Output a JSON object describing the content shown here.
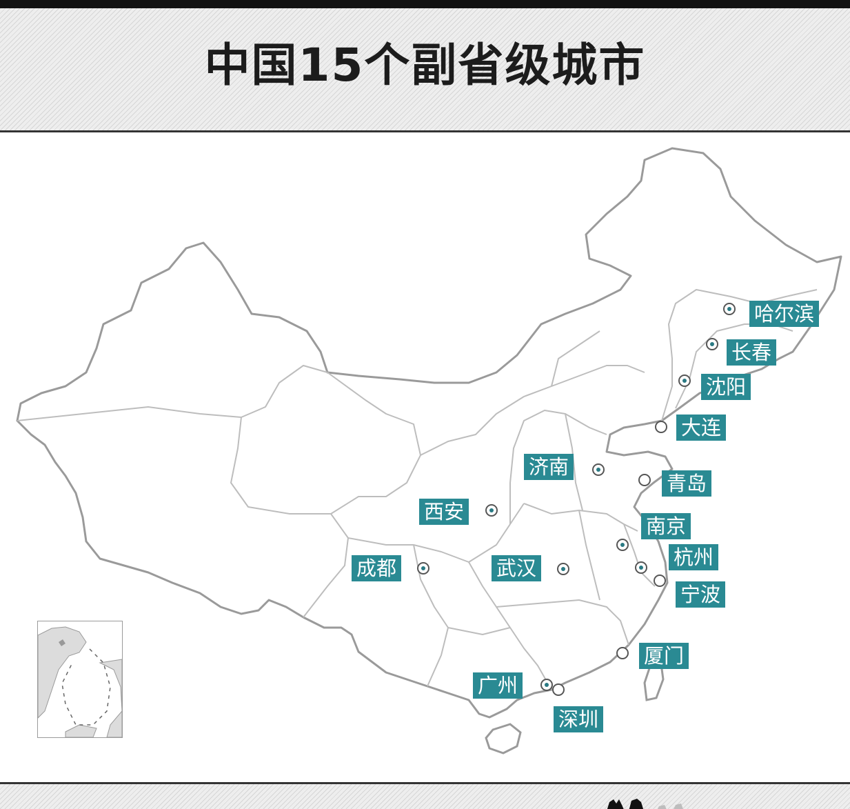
{
  "title": "中国15个副省级城市",
  "colors": {
    "label_bg": "#2a8a93",
    "label_text": "#ffffff",
    "marker_dot": "#2a7a84",
    "map_outline": "#9a9a9a",
    "header_stripes": "#d6d6d6",
    "top_bar": "#121212"
  },
  "cities": [
    {
      "name": "哈尔滨",
      "marker": "provincial-capital"
    },
    {
      "name": "长春",
      "marker": "provincial-capital"
    },
    {
      "name": "沈阳",
      "marker": "provincial-capital"
    },
    {
      "name": "大连",
      "marker": "sub-provincial"
    },
    {
      "name": "济南",
      "marker": "provincial-capital"
    },
    {
      "name": "青岛",
      "marker": "sub-provincial"
    },
    {
      "name": "西安",
      "marker": "provincial-capital"
    },
    {
      "name": "南京",
      "marker": "provincial-capital"
    },
    {
      "name": "杭州",
      "marker": "provincial-capital"
    },
    {
      "name": "成都",
      "marker": "provincial-capital"
    },
    {
      "name": "武汉",
      "marker": "provincial-capital"
    },
    {
      "name": "宁波",
      "marker": "sub-provincial"
    },
    {
      "name": "厦门",
      "marker": "sub-provincial"
    },
    {
      "name": "广州",
      "marker": "provincial-capital"
    },
    {
      "name": "深圳",
      "marker": "sub-provincial"
    }
  ],
  "icons": {
    "inset": "south-china-sea-inset-icon",
    "logo": "publisher-logo-icon"
  }
}
